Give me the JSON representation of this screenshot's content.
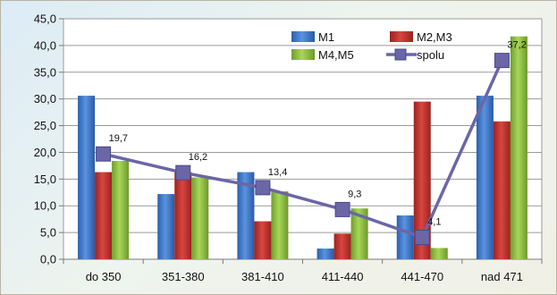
{
  "chart_data": {
    "type": "bar",
    "categories": [
      "do 350",
      "351-380",
      "381-410",
      "411-440",
      "441-470",
      "nad 471"
    ],
    "series": [
      {
        "name": "M1",
        "type": "bar",
        "color": "#3d74c5",
        "values": [
          30.6,
          12.2,
          16.3,
          2.0,
          8.2,
          30.6
        ]
      },
      {
        "name": "M2,M3",
        "type": "bar",
        "color": "#c0332d",
        "values": [
          16.3,
          16.3,
          7.1,
          4.8,
          29.5,
          25.8
        ]
      },
      {
        "name": "M4,M5",
        "type": "bar",
        "color": "#8ec03f",
        "values": [
          18.4,
          15.3,
          12.7,
          9.5,
          2.1,
          41.7
        ]
      },
      {
        "name": "spolu",
        "type": "line",
        "color": "#6b66a6",
        "values": [
          19.7,
          16.2,
          13.4,
          9.3,
          4.1,
          37.2
        ],
        "labels": [
          "19,7",
          "16,2",
          "13,4",
          "9,3",
          "4,1",
          "37,2"
        ]
      }
    ],
    "ylim": [
      0,
      45
    ],
    "yticks": [
      "0,0",
      "5,0",
      "10,0",
      "15,0",
      "20,0",
      "25,0",
      "30,0",
      "35,0",
      "40,0",
      "45,0"
    ],
    "grid": true,
    "legend_position": "top-right"
  }
}
